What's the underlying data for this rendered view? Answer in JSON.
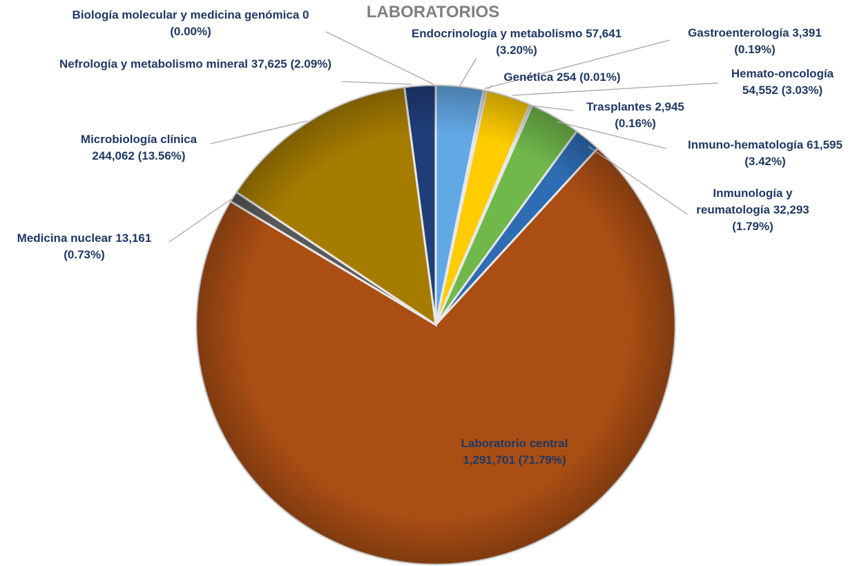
{
  "chart_data": {
    "type": "pie",
    "title": "LABORATORIOS",
    "categories": [
      "Biología molecular y medicina genómica",
      "Endocrinología y metabolismo",
      "Gastroenterología",
      "Genética",
      "Hemato-oncología",
      "Trasplantes",
      "Inmuno-hematología",
      "Inmunología y reumatología",
      "Laboratorio central",
      "Medicina nuclear",
      "Microbiología clínica",
      "Nefrología y metabolismo mineral"
    ],
    "values": [
      0,
      57641,
      3391,
      254,
      54552,
      2945,
      61595,
      32293,
      1291701,
      13161,
      244062,
      37625
    ],
    "value_labels": [
      "0",
      "57,641",
      "3,391",
      "254",
      "54,552",
      "2,945",
      "61,595",
      "32,293",
      "1,291,701",
      "13,161",
      "244,062",
      "37,625"
    ],
    "percent_labels": [
      "(0.00%)",
      "(3.20%)",
      "(0.19%)",
      "(0.01%)",
      "(3.03%)",
      "(0.16%)",
      "(3.42%)",
      "(1.79%)",
      "(71.79%)",
      "(0.73%)",
      "(13.56%)",
      "(2.09%)"
    ],
    "colors": [
      "#b0b0b0",
      "#62a8e5",
      "#8faadc",
      "#c55a11",
      "#ffcc00",
      "#7f7f7f",
      "#70b84a",
      "#2e6db4",
      "#aa4e14",
      "#595959",
      "#a67c00",
      "#203e7a"
    ]
  }
}
